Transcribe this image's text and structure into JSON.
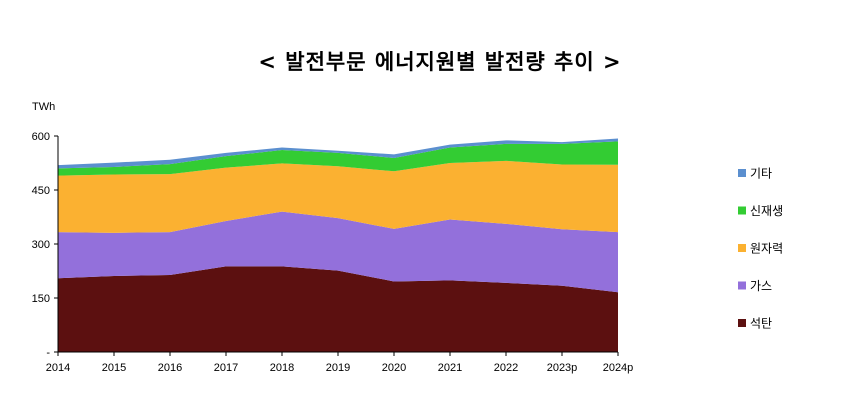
{
  "chart_data": {
    "type": "area",
    "stacked": true,
    "title": "< 발전부문 에너지원별 발전량 추이 >",
    "ylabel": "TWh",
    "xlabel": "",
    "ylim": [
      0,
      600
    ],
    "yticks": [
      0,
      150,
      300,
      450,
      600
    ],
    "ytick_labels": [
      "-",
      "150",
      "300",
      "450",
      "600"
    ],
    "categories": [
      "2014",
      "2015",
      "2016",
      "2017",
      "2018",
      "2019",
      "2020",
      "2021",
      "2022",
      "2023p",
      "2024p"
    ],
    "series": [
      {
        "name": "석탄",
        "color": "#5c1010",
        "values": [
          205,
          211,
          214,
          238,
          238,
          226,
          196,
          199,
          192,
          184,
          166
        ]
      },
      {
        "name": "가스",
        "color": "#9370db",
        "values": [
          128,
          120,
          119,
          126,
          152,
          146,
          146,
          169,
          164,
          157,
          167
        ]
      },
      {
        "name": "원자력",
        "color": "#fbb131",
        "values": [
          157,
          162,
          161,
          148,
          134,
          144,
          160,
          157,
          175,
          180,
          187
        ]
      },
      {
        "name": "신재생",
        "color": "#33cc33",
        "values": [
          20,
          21,
          28,
          32,
          37,
          37,
          37,
          43,
          47,
          57,
          65
        ]
      },
      {
        "name": "기타",
        "color": "#5b8fcf",
        "values": [
          9,
          12,
          12,
          9,
          7,
          6,
          10,
          8,
          10,
          5,
          8
        ]
      }
    ],
    "legend": {
      "placement": "right",
      "order": [
        "기타",
        "신재생",
        "원자력",
        "가스",
        "석탄"
      ]
    },
    "grid": false
  }
}
